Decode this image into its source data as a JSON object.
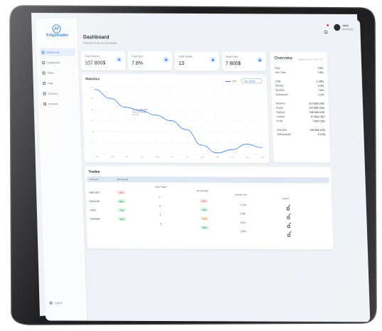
{
  "app": {
    "logo_text": "Edgetrader"
  },
  "sidebar": {
    "items": [
      {
        "label": "Dashboard",
        "active": true
      },
      {
        "label": "Dashboard",
        "active": false
      },
      {
        "label": "Plans",
        "active": false
      },
      {
        "label": "Help",
        "active": false
      },
      {
        "label": "Connect",
        "active": false
      },
      {
        "label": "Account",
        "active": false
      }
    ],
    "logout_label": "Logout"
  },
  "header": {
    "title": "Dashboard",
    "subtitle": "Overview of the account details",
    "user_name": "Jakub",
    "user_account": "#2078213"
  },
  "stats": [
    {
      "label": "Total Balance",
      "value": "107 800$"
    },
    {
      "label": "Total Gain",
      "value": "7.8%"
    },
    {
      "label": "Total Trades",
      "value": "13"
    },
    {
      "label": "Total Profit",
      "value": "7 800$"
    }
  ],
  "statistics": {
    "title": "Statistics",
    "legend": "Profit",
    "range": "Year (2023)",
    "tooltip": [
      "Jun 10, 2023 8:09",
      "Profit: 107 800$",
      "Pip 0.8"
    ]
  },
  "chart_data": {
    "type": "line",
    "title": "Statistics",
    "y_ticks": [
      "30",
      "25",
      "20",
      "15",
      "10",
      "5",
      "0"
    ],
    "x": [
      "Jan",
      "Feb",
      "Mar",
      "Apr",
      "May",
      "Jun",
      "Jul",
      "Aug",
      "Sep",
      "Oct",
      "Nov",
      "Dec"
    ],
    "series": [
      {
        "name": "Profit",
        "values": [
          29,
          25,
          21,
          19.5,
          17.5,
          15,
          11,
          4,
          0.5,
          2,
          4.5,
          3
        ]
      }
    ],
    "ylim": [
      0,
      30
    ],
    "grid": true,
    "legend": "top-right"
  },
  "overview": {
    "title": "Overview",
    "date": "Updated Jan 25, 2023 11:45",
    "rows": [
      {
        "label": "Gain",
        "value": "7.8%"
      },
      {
        "label": "Abs. Gain",
        "value": "7.8%"
      },
      {
        "label": "Daily",
        "value": "1.26%"
      },
      {
        "label": "Weekly",
        "value": "4.3%"
      },
      {
        "label": "Monthly",
        "value": "7.8%"
      },
      {
        "label": "Drawdown",
        "value": "2.3%"
      },
      {
        "label": "Balance",
        "value": "107 800 USD"
      },
      {
        "label": "Equity",
        "value": "107 800 USD"
      },
      {
        "label": "Highest",
        "value": "108 000 USD"
      },
      {
        "label": "Lowest",
        "value": "97 800 USD"
      },
      {
        "label": "Profit",
        "value": "7 800 USD"
      },
      {
        "label": "Deposits",
        "value": "100 000 USD"
      },
      {
        "label": "Withdrawals",
        "value": "0 USD"
      }
    ]
  },
  "trades": {
    "title": "Trades",
    "headers": [
      "Currency",
      "Win Overall",
      "Total Trades",
      "Win Monthly",
      "Overall Gain",
      "Actions"
    ],
    "rows": [
      {
        "currency": "GBPUSD",
        "win_overall": "12%",
        "win_overall_color": "red",
        "total_trades": "2",
        "win_monthly": "12%",
        "win_monthly_color": "red",
        "gain": "+1.2%"
      },
      {
        "currency": "EURUSD",
        "win_overall": "88%",
        "win_overall_color": "green",
        "total_trades": "4",
        "win_monthly": "78%",
        "win_monthly_color": "green",
        "gain": "2.4%"
      },
      {
        "currency": "USDJ",
        "win_overall": "79%",
        "win_overall_color": "green",
        "total_trades": "1",
        "win_monthly": "43%",
        "win_monthly_color": "orange",
        "gain": "3.2%"
      },
      {
        "currency": "EURGBP",
        "win_overall": "65%",
        "win_overall_color": "green",
        "total_trades": "3",
        "win_monthly": "60%",
        "win_monthly_color": "green",
        "gain": "3.6%"
      }
    ]
  }
}
